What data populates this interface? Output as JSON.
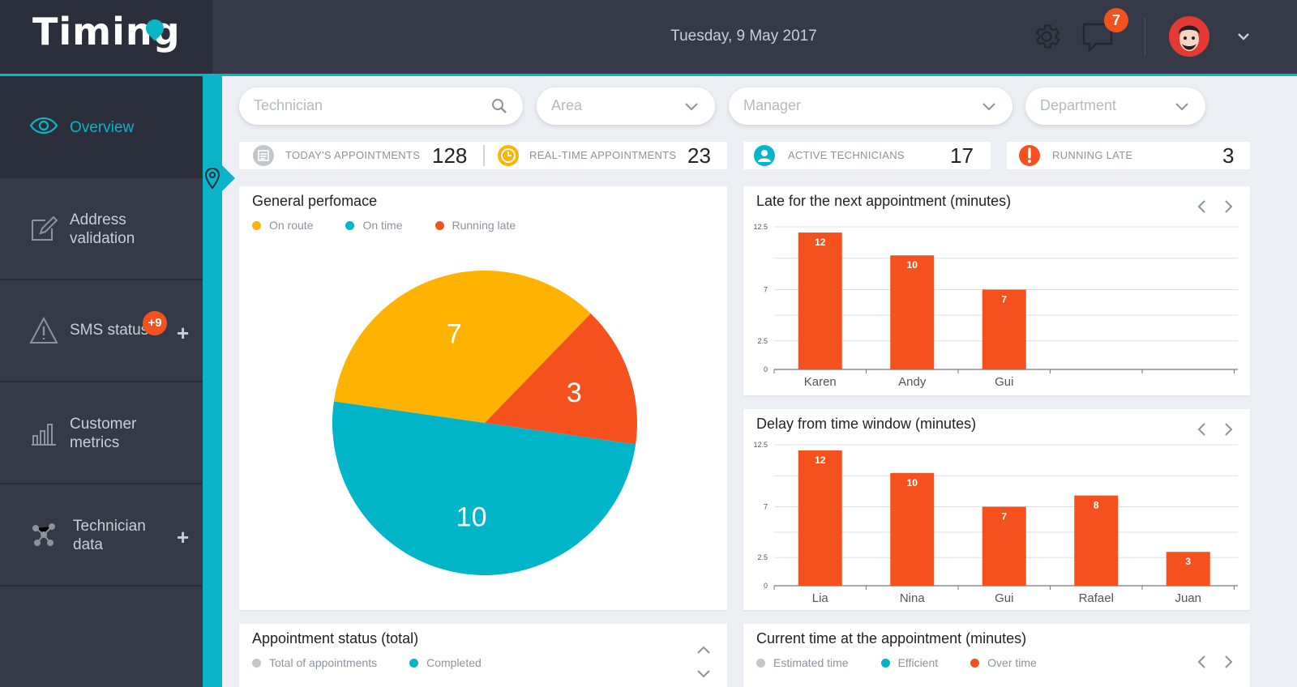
{
  "app": {
    "logo": "Timing",
    "date": "Tuesday, 9 May 2017"
  },
  "header": {
    "notifications": "7"
  },
  "sidebar": {
    "items": [
      {
        "label": "Overview",
        "active": true
      },
      {
        "label": "Address validation"
      },
      {
        "label": "SMS status",
        "badge": "+9",
        "plus": "+"
      },
      {
        "label": "Customer metrics"
      },
      {
        "label": "Technician data",
        "plus": "+"
      }
    ]
  },
  "filters": {
    "technician": "Technician",
    "area": "Area",
    "manager": "Manager",
    "department": "Department"
  },
  "stats": [
    {
      "label": "TODAY'S APPOINTMENTS",
      "value": "128",
      "color": "#b5bac2"
    },
    {
      "label": "REAL-TIME APPOINTMENTS",
      "value": "23",
      "color": "#ffb300"
    },
    {
      "label": "ACTIVE TECHNICIANS",
      "value": "17",
      "color": "#0bb4c8"
    },
    {
      "label": "RUNNING LATE",
      "value": "3",
      "color": "#f4511e"
    }
  ],
  "colors": {
    "accent": "#0bb4c8",
    "on_route": "#ffb300",
    "on_time": "#00b5c8",
    "late": "#f4511e"
  },
  "chart_data": [
    {
      "type": "pie",
      "title": "General perfomace",
      "categories": [
        "On route",
        "On time",
        "Running late"
      ],
      "values": [
        7,
        10,
        3
      ],
      "colors": [
        "#ffb300",
        "#00b5c8",
        "#f4511e"
      ],
      "legend": "top"
    },
    {
      "type": "bar",
      "title": "Late for the next appointment (minutes)",
      "categories": [
        "Karen",
        "Andy",
        "Gui"
      ],
      "values": [
        12,
        10,
        7
      ],
      "yticks": [
        "0",
        "2.5",
        "7",
        "12.5"
      ],
      "ylim": [
        0,
        12.5
      ],
      "grid": true
    },
    {
      "type": "bar",
      "title": "Delay from time window (minutes)",
      "categories": [
        "Lia",
        "Nina",
        "Gui",
        "Rafael",
        "Juan"
      ],
      "values": [
        12,
        10,
        7,
        8,
        3
      ],
      "yticks": [
        "0",
        "2.5",
        "7",
        "12.5"
      ],
      "ylim": [
        0,
        12.5
      ],
      "grid": true
    }
  ],
  "bottom": {
    "status_title": "Appointment status (total)",
    "status_legend": [
      "Total of appointments",
      "Completed"
    ],
    "current_title": "Current time at the appointment (minutes)",
    "current_legend": [
      "Estimated time",
      "Efficient",
      "Over time"
    ]
  }
}
